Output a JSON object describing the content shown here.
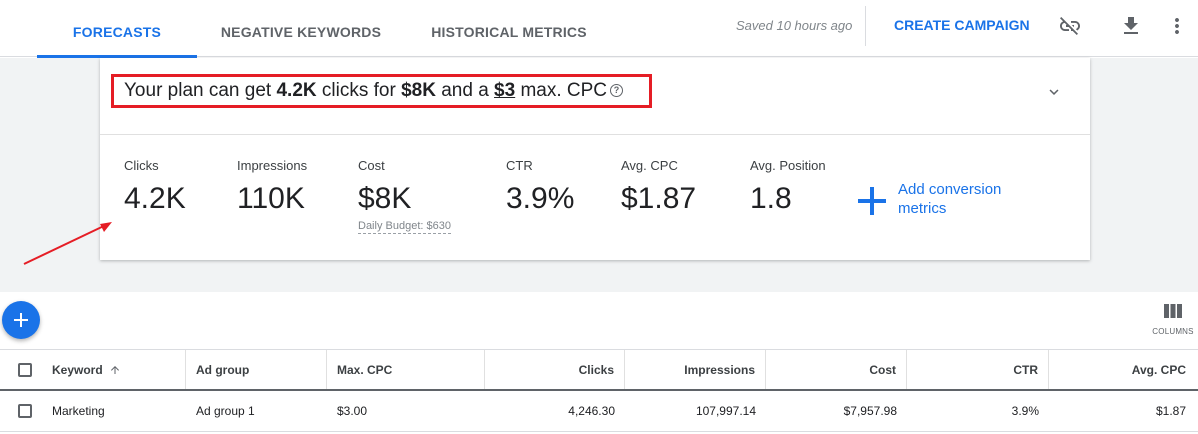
{
  "tabs": [
    {
      "label": "FORECASTS",
      "active": true
    },
    {
      "label": "NEGATIVE KEYWORDS",
      "active": false
    },
    {
      "label": "HISTORICAL METRICS",
      "active": false
    }
  ],
  "header": {
    "saved_text": "Saved 10 hours ago",
    "create_label": "CREATE CAMPAIGN",
    "icons": [
      "unlink-icon",
      "download-icon",
      "more-vert-icon"
    ]
  },
  "summary": {
    "prefix": "Your plan can get ",
    "clicks": "4.2K",
    "mid1": " clicks for ",
    "cost": "$8K",
    "mid2": " and a ",
    "cpc": "$3",
    "suffix": " max. CPC",
    "help_glyph": "?"
  },
  "metrics": [
    {
      "label": "Clicks",
      "value": "4.2K"
    },
    {
      "label": "Impressions",
      "value": "110K"
    },
    {
      "label": "Cost",
      "value": "$8K",
      "sub": "Daily Budget: $630"
    },
    {
      "label": "CTR",
      "value": "3.9%"
    },
    {
      "label": "Avg. CPC",
      "value": "$1.87"
    },
    {
      "label": "Avg. Position",
      "value": "1.8"
    }
  ],
  "add_conversion": {
    "line1": "Add conversion",
    "line2": "metrics"
  },
  "columns_label": "COLUMNS",
  "table": {
    "headers": [
      "Keyword",
      "Ad group",
      "Max. CPC",
      "Clicks",
      "Impressions",
      "Cost",
      "CTR",
      "Avg. CPC"
    ],
    "rows": [
      [
        "Marketing",
        "Ad group 1",
        "$3.00",
        "4,246.30",
        "107,997.14",
        "$7,957.98",
        "3.9%",
        "$1.87"
      ]
    ]
  },
  "colors": {
    "accent": "#1a73e8",
    "highlight": "#e51d25"
  }
}
